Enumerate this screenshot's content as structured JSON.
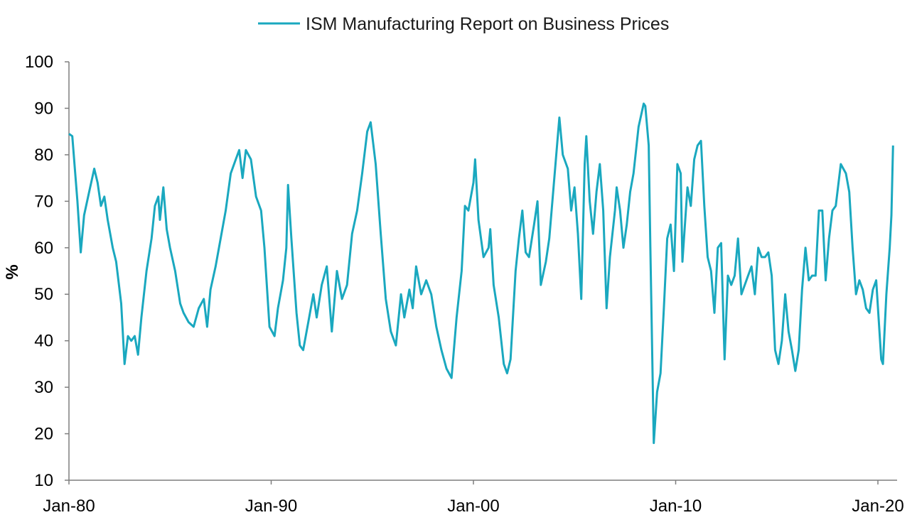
{
  "chart_data": {
    "type": "line",
    "title": "",
    "xlabel": "",
    "ylabel": "%",
    "ylim": [
      10,
      100
    ],
    "xlim": [
      "Jan-80",
      "Sep-20"
    ],
    "yticks": [
      10,
      20,
      30,
      40,
      50,
      60,
      70,
      80,
      90,
      100
    ],
    "xticks": [
      "Jan-80",
      "Jan-90",
      "Jan-00",
      "Jan-10",
      "Jan-20"
    ],
    "grid": false,
    "legend_position": "top-center",
    "line_color": "#1aa8bf",
    "series": [
      {
        "name": "ISM Manufacturing Report on Business Prices",
        "points": [
          [
            "Jan-80",
            84.5
          ],
          [
            "Mar-80",
            84
          ],
          [
            "Jun-80",
            70
          ],
          [
            "Aug-80",
            59
          ],
          [
            "Oct-80",
            67
          ],
          [
            "Jan-81",
            72
          ],
          [
            "Apr-81",
            77
          ],
          [
            "Jun-81",
            74
          ],
          [
            "Aug-81",
            69
          ],
          [
            "Oct-81",
            71
          ],
          [
            "Dec-81",
            66
          ],
          [
            "Mar-82",
            60
          ],
          [
            "May-82",
            57
          ],
          [
            "Aug-82",
            48
          ],
          [
            "Oct-82",
            35
          ],
          [
            "Dec-82",
            41
          ],
          [
            "Feb-83",
            40
          ],
          [
            "Apr-83",
            41
          ],
          [
            "Jun-83",
            37
          ],
          [
            "Aug-83",
            45
          ],
          [
            "Nov-83",
            55
          ],
          [
            "Feb-84",
            62
          ],
          [
            "Apr-84",
            69
          ],
          [
            "Jun-84",
            71
          ],
          [
            "Jul-84",
            66
          ],
          [
            "Sep-84",
            73
          ],
          [
            "Nov-84",
            64
          ],
          [
            "Jan-85",
            60
          ],
          [
            "Apr-85",
            55
          ],
          [
            "Jul-85",
            48
          ],
          [
            "Sep-85",
            46
          ],
          [
            "Dec-85",
            44
          ],
          [
            "Mar-86",
            43
          ],
          [
            "Jun-86",
            47
          ],
          [
            "Sep-86",
            49
          ],
          [
            "Nov-86",
            43
          ],
          [
            "Jan-87",
            51
          ],
          [
            "Apr-87",
            56
          ],
          [
            "Jul-87",
            62
          ],
          [
            "Oct-87",
            68
          ],
          [
            "Jan-88",
            76
          ],
          [
            "Apr-88",
            79
          ],
          [
            "Jun-88",
            81
          ],
          [
            "Aug-88",
            75
          ],
          [
            "Oct-88",
            81
          ],
          [
            "Jan-89",
            79
          ],
          [
            "Apr-89",
            71
          ],
          [
            "Jul-89",
            68
          ],
          [
            "Sep-89",
            60
          ],
          [
            "Dec-89",
            43
          ],
          [
            "Mar-90",
            41
          ],
          [
            "May-90",
            47
          ],
          [
            "Aug-90",
            53
          ],
          [
            "Oct-90",
            60
          ],
          [
            "Nov-90",
            73.5
          ],
          [
            "Jan-91",
            62
          ],
          [
            "Apr-91",
            46
          ],
          [
            "Jun-91",
            39
          ],
          [
            "Aug-91",
            38
          ],
          [
            "Nov-91",
            44
          ],
          [
            "Feb-92",
            50
          ],
          [
            "Apr-92",
            45
          ],
          [
            "Jul-92",
            52
          ],
          [
            "Oct-92",
            56
          ],
          [
            "Jan-93",
            42
          ],
          [
            "Apr-93",
            55
          ],
          [
            "Jul-93",
            49
          ],
          [
            "Oct-93",
            52
          ],
          [
            "Jan-94",
            63
          ],
          [
            "Apr-94",
            68
          ],
          [
            "Jul-94",
            76
          ],
          [
            "Oct-94",
            85
          ],
          [
            "Dec-94",
            87
          ],
          [
            "Mar-95",
            78
          ],
          [
            "Jun-95",
            63
          ],
          [
            "Sep-95",
            49
          ],
          [
            "Dec-95",
            42
          ],
          [
            "Mar-96",
            39
          ],
          [
            "Jun-96",
            50
          ],
          [
            "Aug-96",
            45
          ],
          [
            "Nov-96",
            51
          ],
          [
            "Jan-97",
            47
          ],
          [
            "Mar-97",
            56
          ],
          [
            "Jun-97",
            50
          ],
          [
            "Sep-97",
            53
          ],
          [
            "Dec-97",
            50
          ],
          [
            "Mar-98",
            43
          ],
          [
            "Jun-98",
            38
          ],
          [
            "Sep-98",
            34
          ],
          [
            "Dec-98",
            32
          ],
          [
            "Mar-99",
            45
          ],
          [
            "Jun-99",
            55
          ],
          [
            "Aug-99",
            69
          ],
          [
            "Oct-99",
            68
          ],
          [
            "Jan-00",
            74
          ],
          [
            "Feb-00",
            79
          ],
          [
            "Apr-00",
            66
          ],
          [
            "Jul-00",
            58
          ],
          [
            "Oct-00",
            60
          ],
          [
            "Nov-00",
            64
          ],
          [
            "Jan-01",
            52
          ],
          [
            "Apr-01",
            45
          ],
          [
            "Jul-01",
            35
          ],
          [
            "Sep-01",
            33
          ],
          [
            "Nov-01",
            36
          ],
          [
            "Feb-02",
            55
          ],
          [
            "Apr-02",
            62
          ],
          [
            "Jun-02",
            68
          ],
          [
            "Aug-02",
            59
          ],
          [
            "Oct-02",
            58
          ],
          [
            "Jan-03",
            65
          ],
          [
            "Mar-03",
            70
          ],
          [
            "May-03",
            52
          ],
          [
            "Aug-03",
            57
          ],
          [
            "Oct-03",
            62
          ],
          [
            "Jan-04",
            75
          ],
          [
            "Apr-04",
            88
          ],
          [
            "Jun-04",
            80
          ],
          [
            "Sep-04",
            77
          ],
          [
            "Nov-04",
            68
          ],
          [
            "Jan-05",
            73
          ],
          [
            "Mar-05",
            63
          ],
          [
            "May-05",
            49
          ],
          [
            "Jul-05",
            78
          ],
          [
            "Aug-05",
            84
          ],
          [
            "Oct-05",
            70
          ],
          [
            "Dec-05",
            63
          ],
          [
            "Feb-06",
            72
          ],
          [
            "Apr-06",
            78
          ],
          [
            "Jun-06",
            68
          ],
          [
            "Aug-06",
            47
          ],
          [
            "Oct-06",
            58
          ],
          [
            "Jan-07",
            68
          ],
          [
            "Feb-07",
            73
          ],
          [
            "Apr-07",
            68
          ],
          [
            "Jun-07",
            60
          ],
          [
            "Aug-07",
            65
          ],
          [
            "Oct-07",
            72
          ],
          [
            "Dec-07",
            76
          ],
          [
            "Mar-08",
            86
          ],
          [
            "Jun-08",
            91
          ],
          [
            "Jul-08",
            90.5
          ],
          [
            "Sep-08",
            82
          ],
          [
            "Oct-08",
            60
          ],
          [
            "Dec-08",
            18
          ],
          [
            "Feb-09",
            29
          ],
          [
            "Apr-09",
            33
          ],
          [
            "Jun-09",
            47
          ],
          [
            "Aug-09",
            62
          ],
          [
            "Oct-09",
            65
          ],
          [
            "Dec-09",
            55
          ],
          [
            "Feb-10",
            78
          ],
          [
            "Apr-10",
            76
          ],
          [
            "May-10",
            57
          ],
          [
            "Aug-10",
            73
          ],
          [
            "Oct-10",
            69
          ],
          [
            "Dec-10",
            79
          ],
          [
            "Feb-11",
            82
          ],
          [
            "Apr-11",
            83
          ],
          [
            "Jun-11",
            69
          ],
          [
            "Aug-11",
            58
          ],
          [
            "Oct-11",
            55
          ],
          [
            "Dec-11",
            46
          ],
          [
            "Feb-12",
            60
          ],
          [
            "Apr-12",
            61
          ],
          [
            "Jun-12",
            36
          ],
          [
            "Aug-12",
            54
          ],
          [
            "Oct-12",
            52
          ],
          [
            "Dec-12",
            54
          ],
          [
            "Feb-13",
            62
          ],
          [
            "Apr-13",
            50
          ],
          [
            "Jun-13",
            52
          ],
          [
            "Aug-13",
            54
          ],
          [
            "Oct-13",
            56
          ],
          [
            "Dec-13",
            50
          ],
          [
            "Feb-14",
            60
          ],
          [
            "Apr-14",
            58
          ],
          [
            "Jun-14",
            58
          ],
          [
            "Aug-14",
            59
          ],
          [
            "Oct-14",
            54
          ],
          [
            "Dec-14",
            38
          ],
          [
            "Feb-15",
            35
          ],
          [
            "Apr-15",
            40
          ],
          [
            "Jun-15",
            50
          ],
          [
            "Aug-15",
            42
          ],
          [
            "Oct-15",
            38
          ],
          [
            "Dec-15",
            33.5
          ],
          [
            "Feb-16",
            38
          ],
          [
            "Apr-16",
            51
          ],
          [
            "Jun-16",
            60
          ],
          [
            "Aug-16",
            53
          ],
          [
            "Oct-16",
            54
          ],
          [
            "Dec-16",
            54
          ],
          [
            "Feb-17",
            68
          ],
          [
            "Apr-17",
            68
          ],
          [
            "Jun-17",
            53
          ],
          [
            "Aug-17",
            62
          ],
          [
            "Oct-17",
            68
          ],
          [
            "Dec-17",
            69
          ],
          [
            "Mar-18",
            78
          ],
          [
            "Jun-18",
            76
          ],
          [
            "Aug-18",
            72
          ],
          [
            "Oct-18",
            60
          ],
          [
            "Dec-18",
            50
          ],
          [
            "Feb-19",
            53
          ],
          [
            "Apr-19",
            51
          ],
          [
            "Jun-19",
            47
          ],
          [
            "Aug-19",
            46
          ],
          [
            "Oct-19",
            51
          ],
          [
            "Dec-19",
            53
          ],
          [
            "Mar-20",
            36
          ],
          [
            "Apr-20",
            35
          ],
          [
            "Jun-20",
            50
          ],
          [
            "Aug-20",
            60
          ],
          [
            "Sep-20",
            67
          ],
          [
            "Oct-20",
            82
          ]
        ]
      }
    ]
  }
}
